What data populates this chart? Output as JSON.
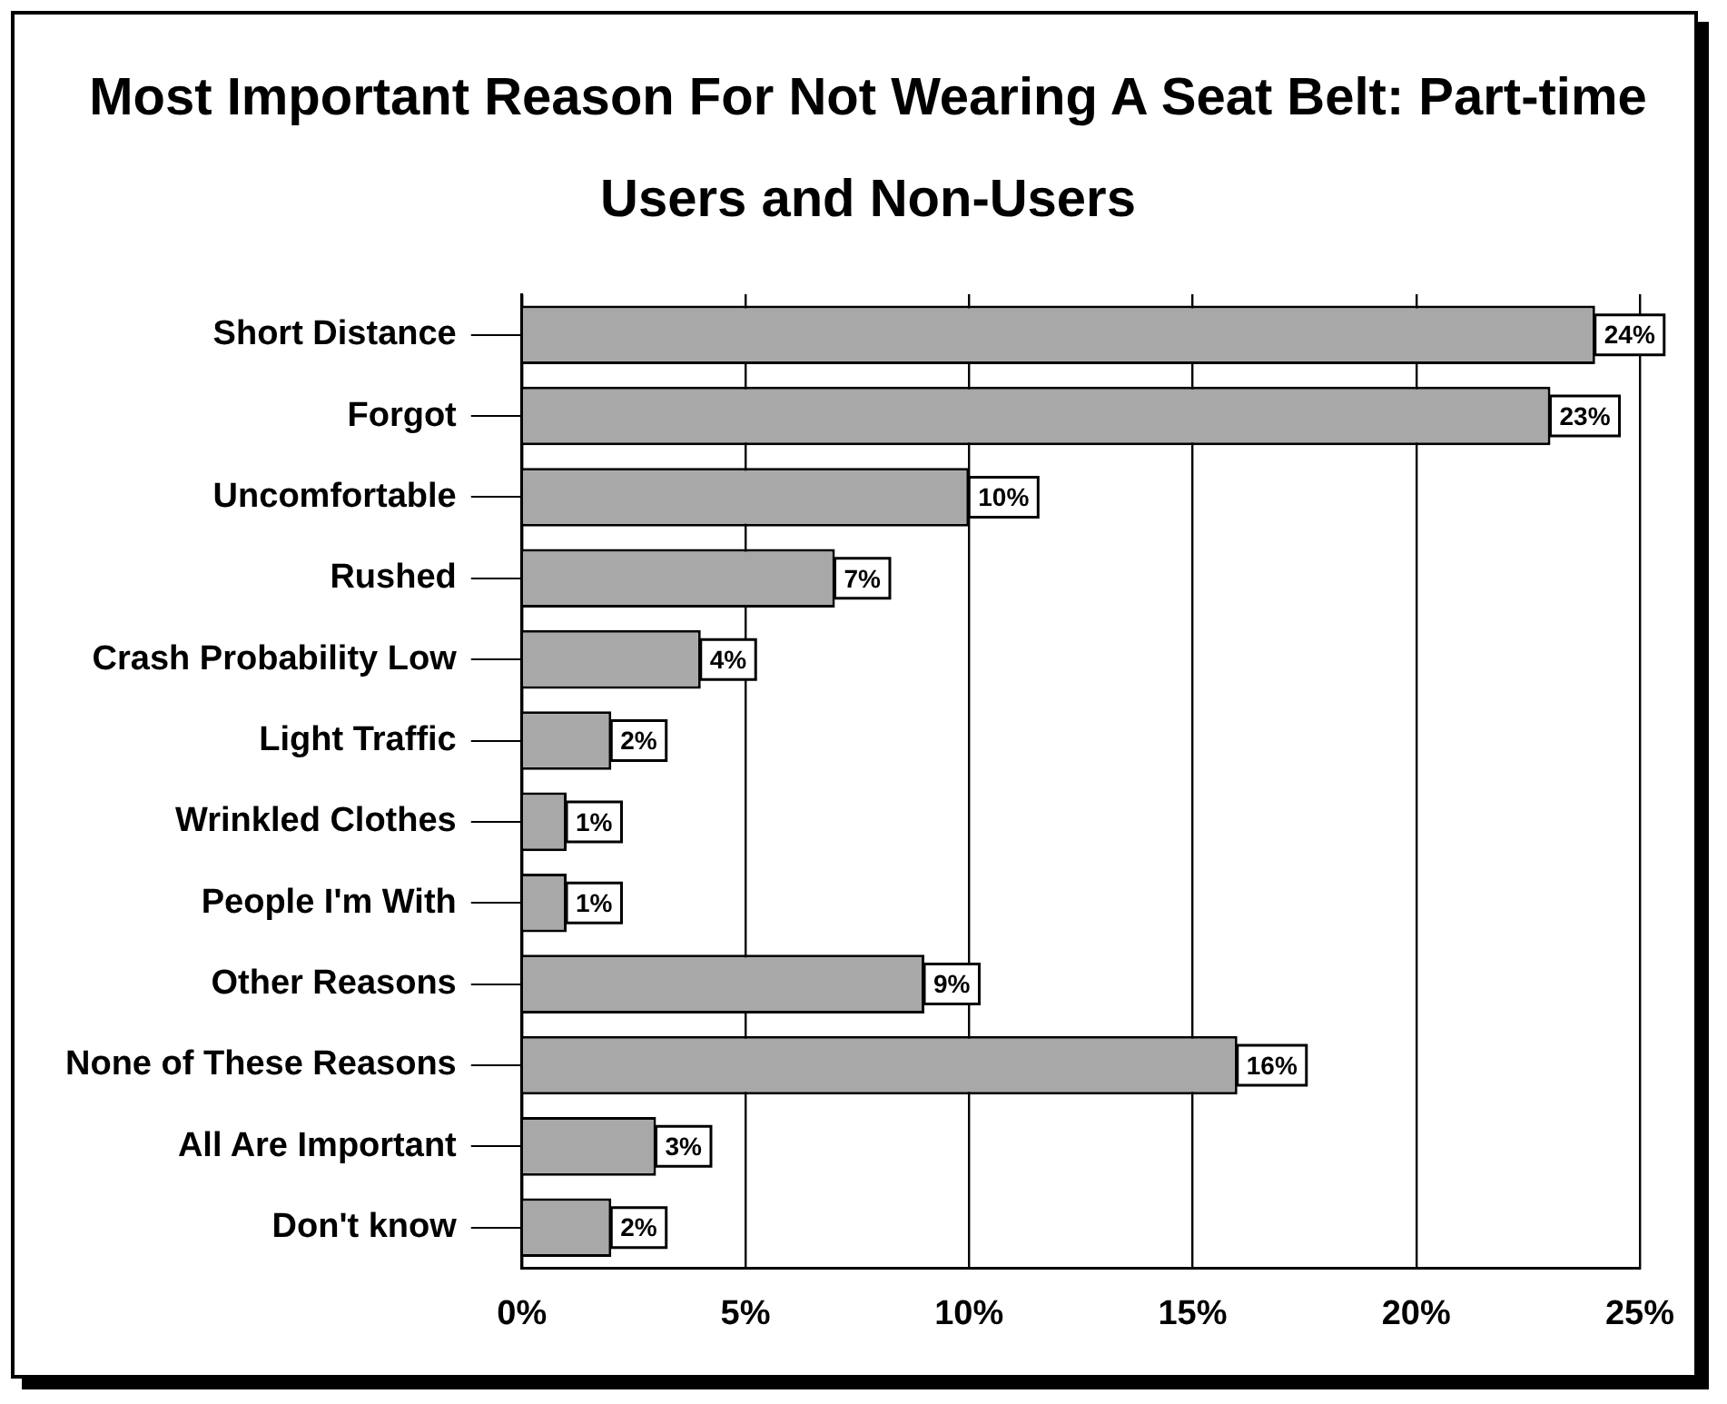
{
  "chart_data": {
    "type": "bar",
    "orientation": "horizontal",
    "title": "Most Important Reason For Not Wearing A Seat Belt:  Part-time Users and Non-Users",
    "categories": [
      "Short Distance",
      "Forgot",
      "Uncomfortable",
      "Rushed",
      "Crash Probability Low",
      "Light Traffic",
      "Wrinkled Clothes",
      "People I'm With",
      "Other Reasons",
      "None of These Reasons",
      "All Are Important",
      "Don't know"
    ],
    "values": [
      24,
      23,
      10,
      7,
      4,
      2,
      1,
      1,
      9,
      16,
      3,
      2
    ],
    "value_labels": [
      "24%",
      "23%",
      "10%",
      "7%",
      "4%",
      "2%",
      "1%",
      "1%",
      "9%",
      "16%",
      "3%",
      "2%"
    ],
    "color": "#a8a8a8",
    "xlim": [
      0,
      25
    ],
    "xticks": [
      {
        "value": 0,
        "label": "0%"
      },
      {
        "value": 5,
        "label": "5%"
      },
      {
        "value": 10,
        "label": "10%"
      },
      {
        "value": 15,
        "label": "15%"
      },
      {
        "value": 20,
        "label": "20%"
      },
      {
        "value": 25,
        "label": "25%"
      }
    ],
    "grid": "x"
  }
}
